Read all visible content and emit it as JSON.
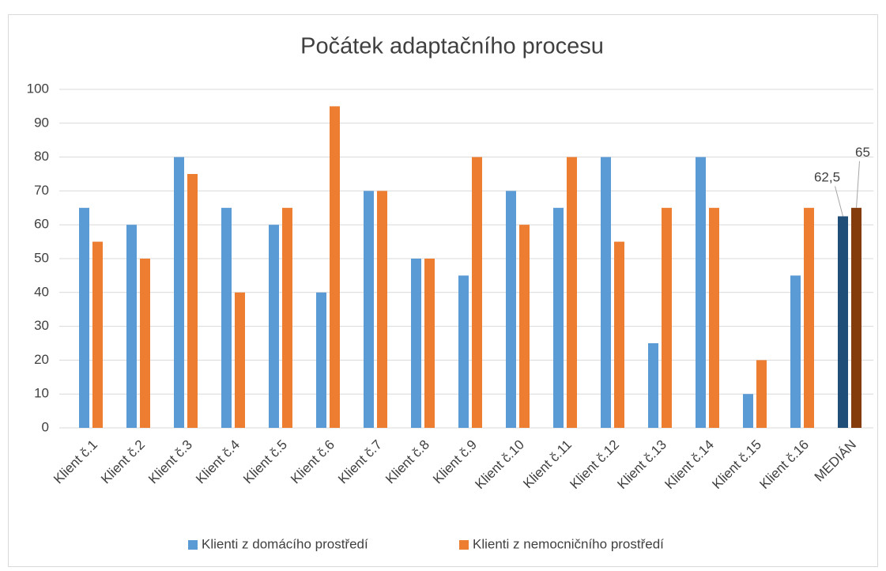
{
  "chart_data": {
    "type": "bar",
    "title": "Počátek adaptačního procesu",
    "categories": [
      "Klient č.1",
      "Klient č.2",
      "Klient č.3",
      "Klient č.4",
      "Klient č.5",
      "Klient č.6",
      "Klient č.7",
      "Klient č.8",
      "Klient č.9",
      "Klient č.10",
      "Klient č.11",
      "Klient č.12",
      "Klient č.13",
      "Klient č.14",
      "Klient č.15",
      "Klient č.16",
      "MEDIÁN"
    ],
    "series": [
      {
        "name": "Klienti z domácího prostředí",
        "color": "#5b9bd5",
        "highlight_color": "#1f4e79",
        "values": [
          65,
          60,
          80,
          65,
          60,
          40,
          70,
          50,
          45,
          70,
          65,
          80,
          25,
          80,
          10,
          45,
          62.5
        ],
        "value_labels": [
          null,
          null,
          null,
          null,
          null,
          null,
          null,
          null,
          null,
          null,
          null,
          null,
          null,
          null,
          null,
          null,
          "62,5"
        ]
      },
      {
        "name": "Klienti z nemocničního prostředí",
        "color": "#ed7d31",
        "highlight_color": "#843c0c",
        "values": [
          55,
          50,
          75,
          40,
          65,
          95,
          70,
          50,
          80,
          60,
          80,
          55,
          65,
          65,
          20,
          65,
          65
        ],
        "value_labels": [
          null,
          null,
          null,
          null,
          null,
          null,
          null,
          null,
          null,
          null,
          null,
          null,
          null,
          null,
          null,
          null,
          "65"
        ]
      }
    ],
    "ylim": [
      0,
      100
    ],
    "yticks": [
      0,
      10,
      20,
      30,
      40,
      50,
      60,
      70,
      80,
      90,
      100
    ],
    "grid": true,
    "legend": "bottom"
  }
}
